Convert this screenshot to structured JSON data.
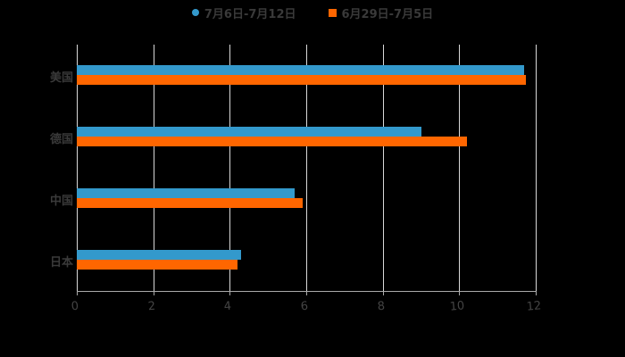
{
  "legend": [
    {
      "label": "7月6日-7月12日",
      "color": "#3399CC",
      "shape": "circle"
    },
    {
      "label": "6月29日-7月5日",
      "color": "#FF6600",
      "shape": "square"
    }
  ],
  "chart_data": {
    "type": "bar",
    "orientation": "horizontal",
    "title": "",
    "xlabel": "",
    "ylabel": "",
    "categories": [
      "美国",
      "德国",
      "中国",
      "日本"
    ],
    "series": [
      {
        "name": "7月6日-7月12日",
        "color": "#3399CC",
        "values": [
          11.7,
          9.0,
          5.7,
          4.3
        ]
      },
      {
        "name": "6月29日-7月5日",
        "color": "#FF6600",
        "values": [
          11.75,
          10.2,
          5.9,
          4.2
        ]
      }
    ],
    "xlim": [
      0,
      12
    ],
    "xticks": [
      "0",
      "2",
      "4",
      "6",
      "8",
      "10",
      "12"
    ],
    "grid": true,
    "legend_position": "top"
  }
}
